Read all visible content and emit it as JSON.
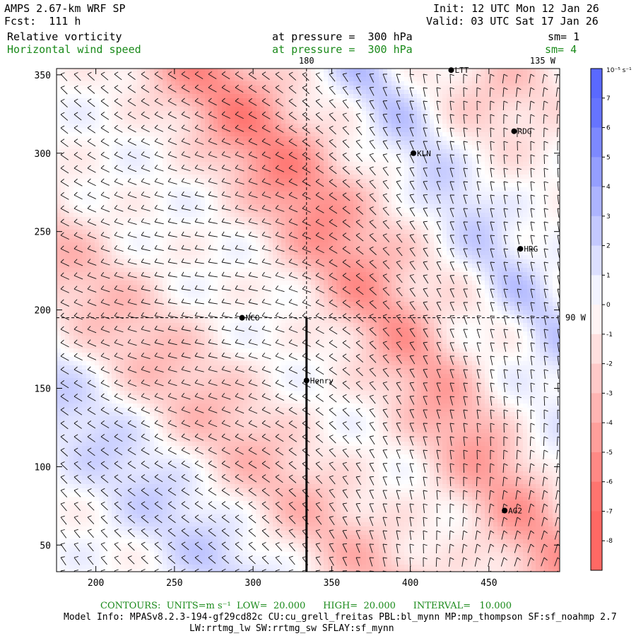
{
  "header": {
    "model": "AMPS 2.67-km WRF SP",
    "fcst": "Fcst:  111 h",
    "init": "Init: 12 UTC Mon 12 Jan 26",
    "valid": "Valid: 03 UTC Sat 17 Jan 26",
    "field1": "Relative vorticity",
    "field1_level": "at pressure =  300 hPa",
    "field1_sm": "sm= 1",
    "field2": "Horizontal wind speed",
    "field2_level": "at pressure =  300 hPa",
    "field2_sm": "sm= 4"
  },
  "colors": {
    "positive": "#e84a4a",
    "negative": "#5b65e0",
    "footer_green": "#1a8a1a"
  },
  "chart_data": {
    "type": "heatmap",
    "title": "Relative vorticity with horizontal wind barbs at 300 hPa",
    "x_ticks": [
      200,
      250,
      300,
      350,
      400,
      450
    ],
    "y_ticks": [
      50,
      100,
      150,
      200,
      250,
      300,
      350
    ],
    "xlim": [
      175,
      495
    ],
    "ylim": [
      33,
      354
    ],
    "ref_lines": {
      "longitude_label": "180",
      "meridian_label": "135 W",
      "parallel_label": "90 W",
      "x": 334,
      "y": 195
    },
    "cross_section": {
      "x": 334,
      "y_from": 33,
      "y_to": 195
    },
    "stations": [
      {
        "name": "NCO",
        "x": 293,
        "y": 195,
        "marker": "dot"
      },
      {
        "name": "Henry",
        "x": 334,
        "y": 155,
        "marker": "dot"
      },
      {
        "name": "KLN",
        "x": 402,
        "y": 300,
        "marker": "dot"
      },
      {
        "name": "RDG",
        "x": 466,
        "y": 314,
        "marker": "dot"
      },
      {
        "name": "HRG",
        "x": 470,
        "y": 239,
        "marker": "dot"
      },
      {
        "name": "AG2",
        "x": 460,
        "y": 72,
        "marker": "dot"
      },
      {
        "name": "LTT",
        "x": 426,
        "y": 353,
        "marker": "dot"
      }
    ],
    "colorbar": {
      "unit": "10⁻⁵ s⁻¹",
      "labels": [
        "7",
        "6",
        "5",
        "4",
        "3",
        "2",
        "1",
        "0",
        "-1",
        "-2",
        "-3",
        "-4",
        "-5",
        "-6",
        "-7",
        "-8"
      ],
      "levels": [
        8,
        7,
        6,
        5,
        4,
        3,
        2,
        1,
        0,
        -1,
        -2,
        -3,
        -4,
        -5,
        -6,
        -7,
        -8,
        -9
      ]
    }
  },
  "footer": {
    "contours": "CONTOURS:  UNITS=m s⁻¹  LOW=  20.000      HIGH=  20.000      INTERVAL=   10.000",
    "model_info": "Model Info: MPASv8.2.3-194-gf29cd82c CU:cu_grell_freitas PBL:bl_mynn MP:mp_thompson SF:sf_noahmp 2.7",
    "model_info2": "LW:rrtmg_lw SW:rrtmg_sw SFLAY:sf_mynn"
  }
}
